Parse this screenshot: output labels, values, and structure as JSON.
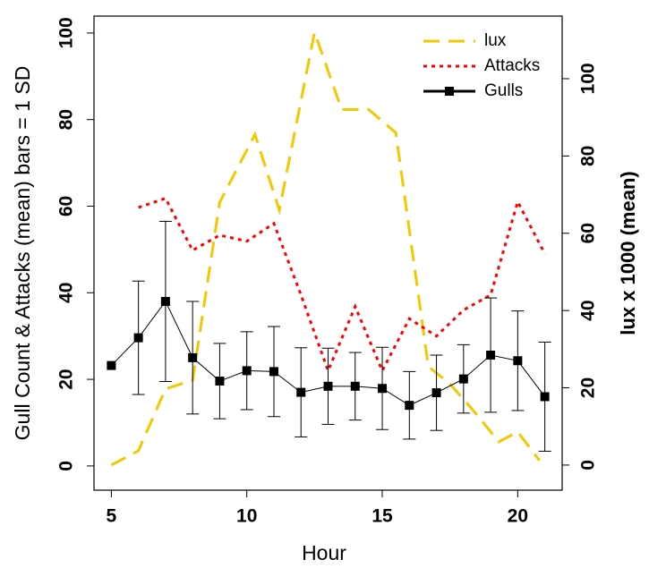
{
  "chart_data": {
    "type": "line",
    "x_label": "Hour",
    "y_label": "Gull Count & Attacks (mean) bars = 1 SD",
    "y2_label": "lux x 1000 (mean)",
    "xlim": [
      4.36,
      21.64
    ],
    "xticks": [
      5,
      10,
      15,
      20
    ],
    "ylim": [
      -5.6,
      103.9
    ],
    "yticks": [
      0,
      20,
      40,
      60,
      80,
      100
    ],
    "y2lim": [
      -6.5,
      116.2
    ],
    "y2ticks": [
      0,
      20,
      40,
      60,
      80,
      100
    ],
    "legend": "top-right",
    "series": [
      {
        "name": "lux",
        "color": "#f2c800",
        "dash": "dashed",
        "axis": "y2",
        "x": [
          5,
          6,
          7,
          8,
          9,
          10.3,
          11.2,
          12.5,
          13.5,
          14.5,
          15.5,
          16.7,
          17.5,
          18.5,
          19.3,
          20,
          20.8
        ],
        "values": [
          0,
          3.7,
          19.7,
          22,
          68,
          85.6,
          66,
          112,
          92,
          92,
          86,
          25.5,
          21,
          13,
          6,
          8.6,
          1.2
        ]
      },
      {
        "name": "Attacks",
        "color": "#ff0000",
        "dash": "dotted",
        "x": [
          6,
          7,
          8,
          9,
          10,
          11,
          12,
          13,
          14,
          15,
          16,
          17,
          18,
          19,
          20,
          21
        ],
        "values": [
          59.7,
          61.8,
          49.8,
          53.3,
          51.9,
          56,
          39.5,
          22,
          36.8,
          22,
          34,
          30,
          36,
          39.5,
          61,
          49
        ]
      },
      {
        "name": "Gulls",
        "color": "#000000",
        "dash": "solid",
        "marker": "square",
        "x": [
          5,
          6,
          7,
          8,
          9,
          10,
          11,
          12,
          13,
          14,
          15,
          16,
          17,
          18,
          19,
          20,
          21
        ],
        "values": [
          23.2,
          29.6,
          38,
          25,
          19.6,
          22,
          21.8,
          17,
          18.4,
          18.4,
          17.9,
          14,
          16.9,
          20.1,
          25.6,
          24.3,
          16
        ],
        "errors": [
          null,
          13.1,
          18.5,
          13,
          8.7,
          9,
          10.4,
          10.3,
          8.8,
          7.8,
          9.5,
          7.8,
          8.7,
          7.9,
          13.2,
          11.5,
          12.6
        ]
      }
    ]
  }
}
